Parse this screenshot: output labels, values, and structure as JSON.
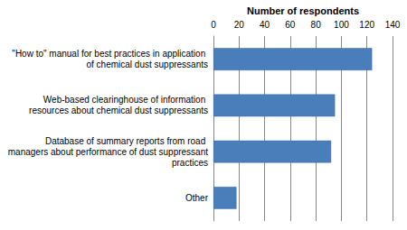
{
  "chart_data": {
    "type": "bar",
    "orientation": "horizontal",
    "xlabel": "Number of respondents",
    "categories": [
      "\"How to\" manual for best practices in application of chemical dust suppressants",
      "Web-based clearinghouse of information resources about chemical dust suppressants",
      "Database of summary reports from road managers about performance of dust suppressant practices",
      "Other"
    ],
    "values": [
      124,
      95,
      92,
      18
    ],
    "color": "#4a7ebb",
    "xlim": [
      0,
      140
    ],
    "xticks": [
      0,
      20,
      40,
      60,
      80,
      100,
      120,
      140
    ],
    "grid": true
  }
}
